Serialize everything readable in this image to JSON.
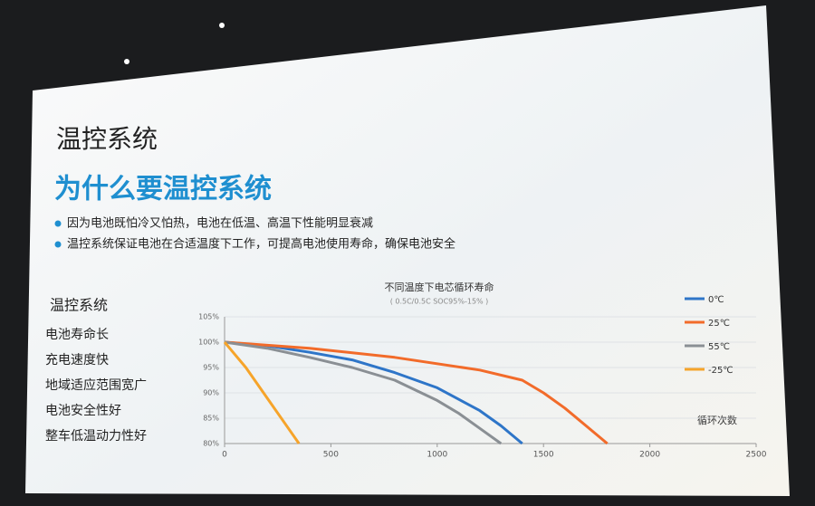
{
  "slide": {
    "title": "温控系统",
    "subtitle": "为什么要温控系统",
    "bullets": [
      "因为电池既怕冷又怕热，电池在低温、高温下性能明显衰减",
      "温控系统保证电池在合适温度下工作，可提高电池使用寿命，确保电池安全"
    ],
    "list_title": "温控系统",
    "list": [
      "电池寿命长",
      "充电速度快",
      "地域适应范围宽广",
      "电池安全性好",
      "整车低温动力性好"
    ]
  },
  "chart_data": {
    "type": "line",
    "title": "不同温度下电芯循环寿命",
    "subtitle": "( 0.5C/0.5C SOC95%-15% )",
    "x_label": "循环次数",
    "xlim": [
      0,
      2500
    ],
    "xticks": [
      0,
      500,
      1000,
      1500,
      2000,
      2500
    ],
    "ylim": [
      80,
      105
    ],
    "yticks": [
      {
        "value": 80,
        "label": "80%"
      },
      {
        "value": 85,
        "label": "85%"
      },
      {
        "value": 90,
        "label": "90%"
      },
      {
        "value": 95,
        "label": "95%"
      },
      {
        "value": 100,
        "label": "100%"
      },
      {
        "value": 105,
        "label": "105%"
      }
    ],
    "grid": true,
    "legend": "top-right",
    "series": [
      {
        "name": "0℃",
        "color": "#2e75c8",
        "x": [
          0,
          200,
          400,
          600,
          800,
          1000,
          1200,
          1300,
          1400
        ],
        "values": [
          100,
          99.3,
          98,
          96.5,
          94,
          91,
          86.5,
          83.5,
          80
        ]
      },
      {
        "name": "25℃",
        "color": "#f26b2a",
        "x": [
          0,
          400,
          800,
          1200,
          1400,
          1500,
          1600,
          1700,
          1800
        ],
        "values": [
          100,
          98.8,
          97,
          94.5,
          92.5,
          90,
          87,
          83.5,
          80
        ]
      },
      {
        "name": "55℃",
        "color": "#8a8f94",
        "x": [
          0,
          200,
          400,
          600,
          800,
          1000,
          1100,
          1200,
          1300
        ],
        "values": [
          100,
          98.8,
          97,
          95,
          92.5,
          88.5,
          86,
          83,
          80
        ]
      },
      {
        "name": "-25℃",
        "color": "#f6a42a",
        "x": [
          0,
          100,
          200,
          300,
          350
        ],
        "values": [
          100,
          95,
          89,
          83,
          80
        ]
      }
    ]
  }
}
